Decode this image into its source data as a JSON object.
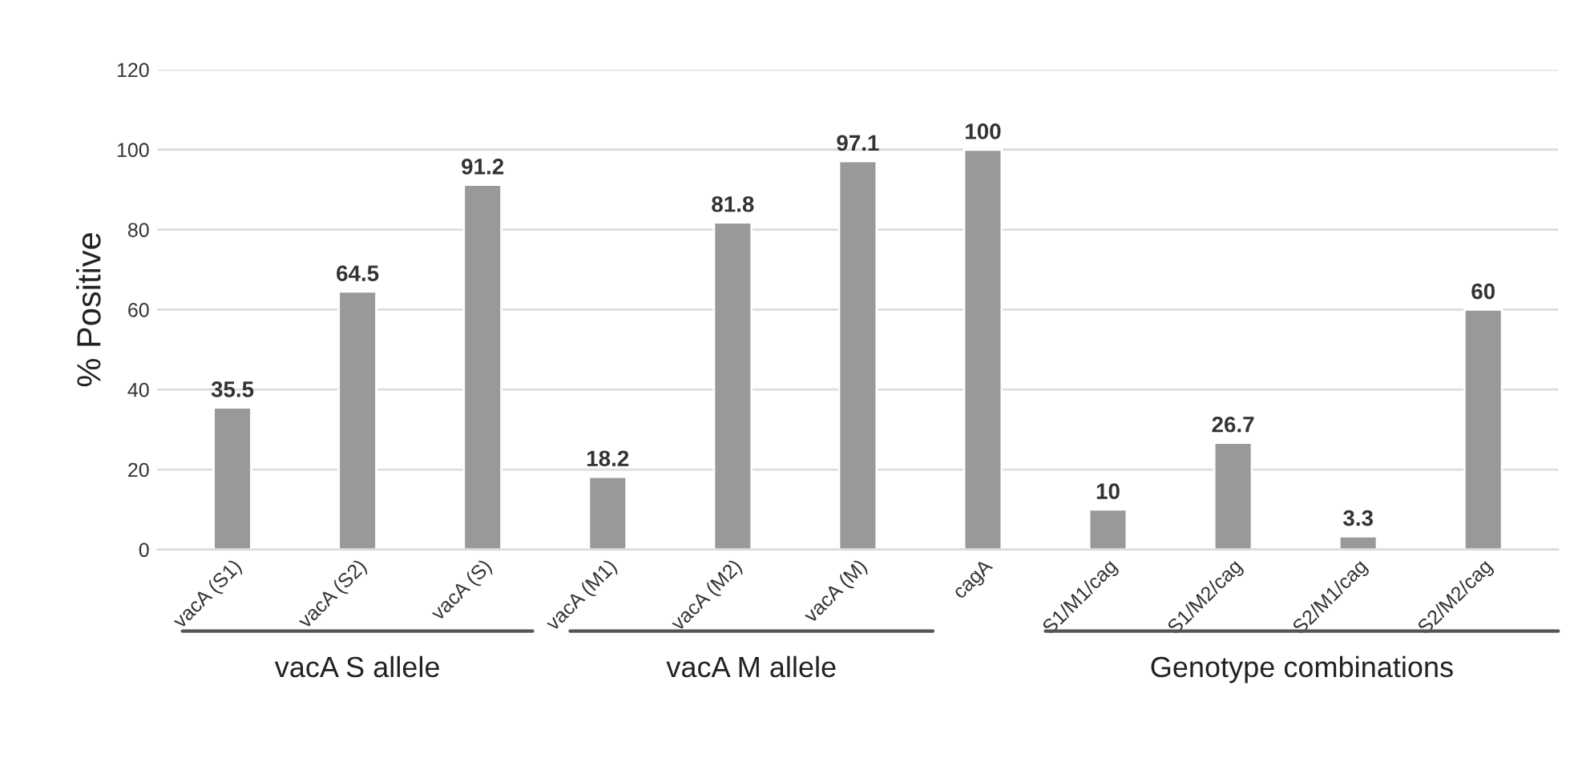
{
  "chart_data": {
    "type": "bar",
    "ylabel": "% Positive",
    "categories": [
      "vacA (S1)",
      "vacA (S2)",
      "vacA (S)",
      "vacA (M1)",
      "vacA (M2)",
      "vacA (M)",
      "cagA",
      "S1/M1/cag",
      "S1/M2/cag",
      "S2/M1/cag",
      "S2/M2/cag"
    ],
    "values": [
      35.5,
      64.5,
      91.2,
      18.2,
      81.8,
      97.1,
      100,
      10,
      26.7,
      3.3,
      60
    ],
    "color": "#999999",
    "ylim": [
      0,
      120
    ],
    "yticks": [
      0,
      20,
      40,
      60,
      80,
      100,
      120
    ],
    "grid": "y",
    "data_labels": true,
    "annotations": [
      "vacA S allele",
      "vacA M allele",
      "Genotype combinations"
    ]
  }
}
